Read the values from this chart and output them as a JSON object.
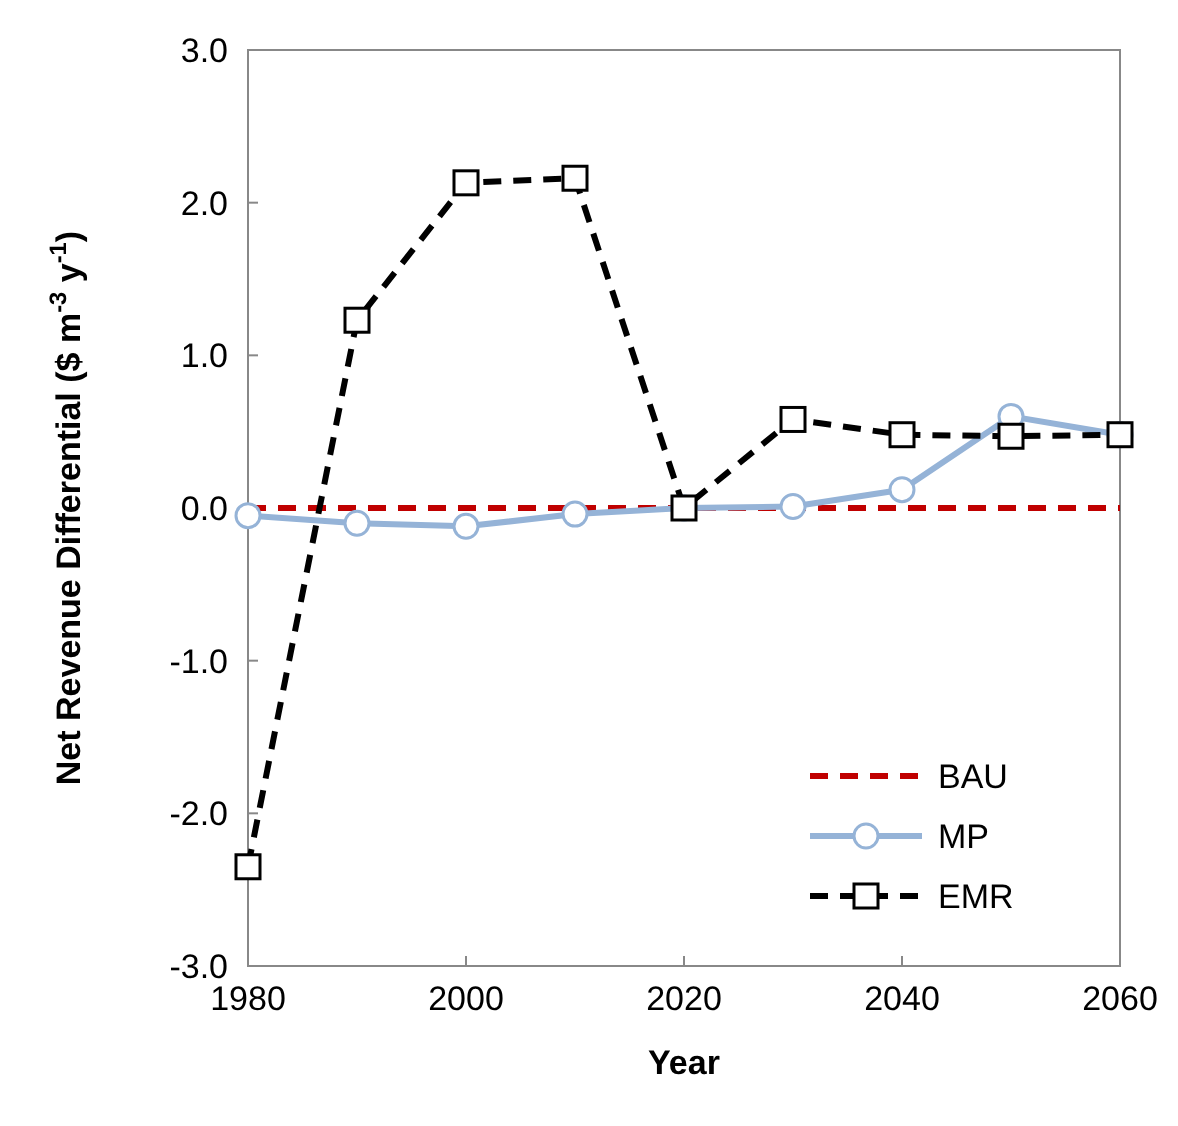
{
  "chart_data": {
    "type": "line",
    "xlabel": "Year",
    "ylabel": "Net Revenue Differential ($ m$^{-3}$ y$^{-1}$)",
    "x": [
      1980,
      1990,
      2000,
      2010,
      2020,
      2030,
      2040,
      2050,
      2060
    ],
    "xlim": [
      1980,
      2060
    ],
    "xticks": [
      1980,
      2000,
      2020,
      2040,
      2060
    ],
    "ylim": [
      -3,
      3
    ],
    "yticks": [
      {
        "value": -3,
        "label": "-3.0"
      },
      {
        "value": -2,
        "label": "-2.0"
      },
      {
        "value": -1,
        "label": "-1.0"
      },
      {
        "value": 0,
        "label": "0.0"
      },
      {
        "value": 1,
        "label": "1.0"
      },
      {
        "value": 2,
        "label": "2.0"
      },
      {
        "value": 3,
        "label": "3.0"
      }
    ],
    "grid": false,
    "legend": "bottom right",
    "series": [
      {
        "name": "BAU",
        "color": "#c00000",
        "marker": "none",
        "line_style": "dashed",
        "values": [
          0,
          0,
          0,
          0,
          0,
          0,
          0,
          0,
          0
        ]
      },
      {
        "name": "MP",
        "color": "#95b3d7",
        "marker": "circle",
        "line_style": "solid",
        "values": [
          -0.05,
          -0.1,
          -0.12,
          -0.04,
          0,
          0.01,
          0.12,
          0.6,
          0.48
        ]
      },
      {
        "name": "EMR",
        "color": "#000000",
        "marker": "square",
        "line_style": "dashed",
        "values": [
          -2.35,
          1.23,
          2.13,
          2.16,
          0,
          0.58,
          0.48,
          0.47,
          0.48
        ]
      }
    ]
  }
}
